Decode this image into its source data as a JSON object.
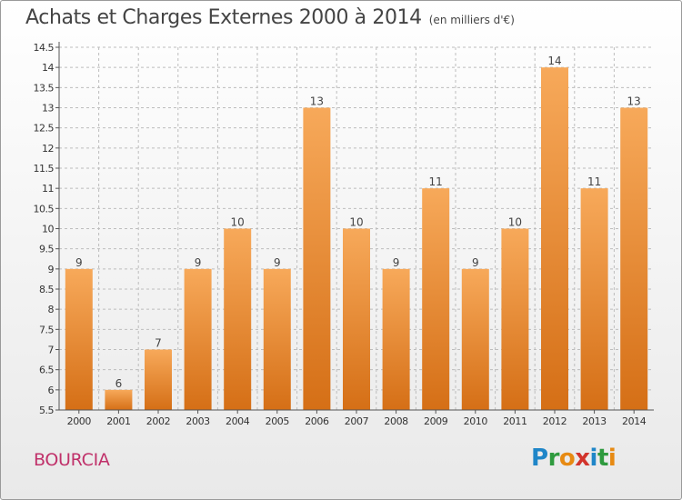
{
  "header": {
    "title": "Achats et Charges Externes 2000 à 2014",
    "unit": "(en milliers d'€)"
  },
  "footer": {
    "commune": "BOURCIA",
    "logo": {
      "text": "Proxiti",
      "letter_colors": [
        "#1f86c8",
        "#2e9a3e",
        "#e78a12",
        "#d2342c",
        "#1f86c8",
        "#2e9a3e",
        "#e78a12"
      ]
    }
  },
  "colors": {
    "bar_top": "#f7a95a",
    "bar_bottom": "#d56f16",
    "grid": "#bdbdbd",
    "axis": "#555555",
    "title": "#444444",
    "commune": "#c0316a"
  },
  "chart_data": {
    "type": "bar",
    "title": "Achats et Charges Externes 2000 à 2014",
    "subtitle": "(en milliers d'€)",
    "xlabel": "",
    "ylabel": "",
    "categories": [
      "2000",
      "2001",
      "2002",
      "2003",
      "2004",
      "2005",
      "2006",
      "2007",
      "2008",
      "2009",
      "2010",
      "2011",
      "2012",
      "2013",
      "2014"
    ],
    "values": [
      9,
      6,
      7,
      9,
      10,
      9,
      13,
      10,
      9,
      11,
      9,
      10,
      14,
      11,
      13
    ],
    "data_labels": [
      "9",
      "6",
      "7",
      "9",
      "10",
      "9",
      "13",
      "10",
      "9",
      "11",
      "9",
      "10",
      "14",
      "11",
      "13"
    ],
    "ylim": [
      5.5,
      14.5
    ],
    "yticks": [
      5.5,
      6,
      6.5,
      7,
      7.5,
      8,
      8.5,
      9,
      9.5,
      10,
      10.5,
      11,
      11.5,
      12,
      12.5,
      13,
      13.5,
      14,
      14.5
    ],
    "ytick_labels": [
      "5.5",
      "6",
      "6.5",
      "7",
      "7.5",
      "8",
      "8.5",
      "9",
      "9.5",
      "10",
      "10.5",
      "11",
      "11.5",
      "12",
      "12.5",
      "13",
      "13.5",
      "14",
      "14.5"
    ],
    "grid": true,
    "legend": "none"
  }
}
